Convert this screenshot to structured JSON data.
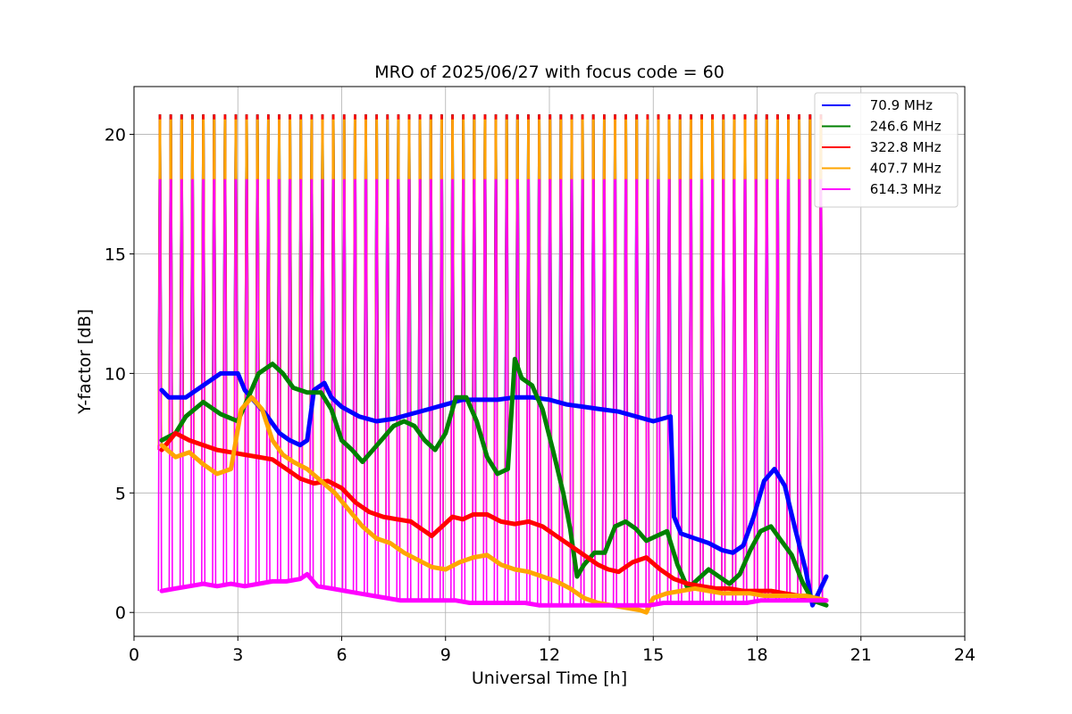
{
  "chart_data": {
    "type": "line",
    "title": "MRO of 2025/06/27 with focus code = 60",
    "xlabel": "Universal Time [h]",
    "ylabel": "Y-factor [dB]",
    "xlim": [
      0,
      24
    ],
    "ylim": [
      -1,
      22
    ],
    "x_ticks": [
      0,
      3,
      6,
      9,
      12,
      15,
      18,
      21,
      24
    ],
    "y_ticks": [
      0,
      5,
      10,
      15,
      20
    ],
    "grid": true,
    "legend_position": "top-right",
    "data_range_hours": [
      0.75,
      20.0
    ],
    "calibration_spikes": {
      "count": 62,
      "first_hour": 0.75,
      "interval_hours": 0.313,
      "peak_db": {
        "70.9 MHz": 20.8,
        "246.6 MHz": 20.8,
        "322.8 MHz": 20.8,
        "407.7 MHz": 20.6,
        "614.3 MHz": 18.1
      }
    },
    "series": [
      {
        "name": " 70.9 MHz",
        "color": "#0000ff",
        "end_hour": 20.0,
        "points": [
          [
            0.8,
            9.3
          ],
          [
            1.0,
            9.0
          ],
          [
            1.5,
            9.0
          ],
          [
            2.0,
            9.5
          ],
          [
            2.5,
            10.0
          ],
          [
            3.0,
            10.0
          ],
          [
            3.2,
            9.3
          ],
          [
            3.5,
            8.8
          ],
          [
            3.8,
            8.3
          ],
          [
            4.2,
            7.5
          ],
          [
            4.5,
            7.2
          ],
          [
            4.8,
            7.0
          ],
          [
            5.0,
            7.2
          ],
          [
            5.2,
            9.3
          ],
          [
            5.5,
            9.6
          ],
          [
            5.7,
            9.0
          ],
          [
            6.0,
            8.6
          ],
          [
            6.5,
            8.2
          ],
          [
            7.0,
            8.0
          ],
          [
            7.5,
            8.1
          ],
          [
            8.0,
            8.3
          ],
          [
            8.5,
            8.5
          ],
          [
            9.0,
            8.7
          ],
          [
            9.5,
            8.9
          ],
          [
            10.0,
            8.9
          ],
          [
            10.5,
            8.9
          ],
          [
            11.0,
            9.0
          ],
          [
            11.5,
            9.0
          ],
          [
            12.0,
            8.9
          ],
          [
            12.5,
            8.7
          ],
          [
            13.0,
            8.6
          ],
          [
            13.5,
            8.5
          ],
          [
            14.0,
            8.4
          ],
          [
            14.5,
            8.2
          ],
          [
            15.0,
            8.0
          ],
          [
            15.5,
            8.2
          ],
          [
            15.6,
            4.0
          ],
          [
            15.8,
            3.3
          ],
          [
            16.2,
            3.1
          ],
          [
            16.6,
            2.9
          ],
          [
            17.0,
            2.6
          ],
          [
            17.3,
            2.5
          ],
          [
            17.6,
            2.8
          ],
          [
            17.9,
            4.0
          ],
          [
            18.2,
            5.5
          ],
          [
            18.5,
            6.0
          ],
          [
            18.8,
            5.3
          ],
          [
            19.1,
            3.5
          ],
          [
            19.4,
            1.8
          ],
          [
            19.6,
            0.3
          ],
          [
            19.8,
            0.9
          ],
          [
            20.0,
            1.5
          ]
        ]
      },
      {
        "name": " 246.6 MHz",
        "color": "#008000",
        "end_hour": 20.0,
        "points": [
          [
            0.8,
            7.2
          ],
          [
            1.2,
            7.5
          ],
          [
            1.5,
            8.2
          ],
          [
            2.0,
            8.8
          ],
          [
            2.5,
            8.3
          ],
          [
            3.0,
            8.0
          ],
          [
            3.3,
            9.0
          ],
          [
            3.6,
            10.0
          ],
          [
            4.0,
            10.4
          ],
          [
            4.3,
            10.0
          ],
          [
            4.6,
            9.4
          ],
          [
            5.0,
            9.2
          ],
          [
            5.4,
            9.2
          ],
          [
            5.7,
            8.5
          ],
          [
            6.0,
            7.2
          ],
          [
            6.3,
            6.8
          ],
          [
            6.6,
            6.3
          ],
          [
            6.9,
            6.8
          ],
          [
            7.2,
            7.3
          ],
          [
            7.5,
            7.8
          ],
          [
            7.8,
            8.0
          ],
          [
            8.1,
            7.8
          ],
          [
            8.4,
            7.2
          ],
          [
            8.7,
            6.8
          ],
          [
            9.0,
            7.5
          ],
          [
            9.3,
            9.0
          ],
          [
            9.6,
            9.0
          ],
          [
            9.9,
            8.0
          ],
          [
            10.2,
            6.5
          ],
          [
            10.5,
            5.8
          ],
          [
            10.8,
            6.0
          ],
          [
            11.0,
            10.6
          ],
          [
            11.2,
            9.8
          ],
          [
            11.5,
            9.5
          ],
          [
            11.8,
            8.5
          ],
          [
            12.1,
            6.8
          ],
          [
            12.4,
            5.0
          ],
          [
            12.6,
            3.5
          ],
          [
            12.8,
            1.5
          ],
          [
            13.0,
            2.0
          ],
          [
            13.3,
            2.5
          ],
          [
            13.6,
            2.5
          ],
          [
            13.9,
            3.6
          ],
          [
            14.2,
            3.8
          ],
          [
            14.5,
            3.5
          ],
          [
            14.8,
            3.0
          ],
          [
            15.1,
            3.2
          ],
          [
            15.4,
            3.4
          ],
          [
            15.7,
            2.0
          ],
          [
            16.0,
            1.0
          ],
          [
            16.3,
            1.4
          ],
          [
            16.6,
            1.8
          ],
          [
            16.9,
            1.5
          ],
          [
            17.2,
            1.2
          ],
          [
            17.5,
            1.6
          ],
          [
            17.8,
            2.6
          ],
          [
            18.1,
            3.4
          ],
          [
            18.4,
            3.6
          ],
          [
            18.7,
            3.0
          ],
          [
            19.0,
            2.4
          ],
          [
            19.3,
            1.3
          ],
          [
            19.6,
            0.5
          ],
          [
            20.0,
            0.3
          ]
        ]
      },
      {
        "name": " 322.8 MHz",
        "color": "#ff0000",
        "end_hour": 20.0,
        "points": [
          [
            0.8,
            6.8
          ],
          [
            1.2,
            7.5
          ],
          [
            1.6,
            7.2
          ],
          [
            2.0,
            7.0
          ],
          [
            2.4,
            6.8
          ],
          [
            2.8,
            6.7
          ],
          [
            3.2,
            6.6
          ],
          [
            3.6,
            6.5
          ],
          [
            4.0,
            6.4
          ],
          [
            4.4,
            6.0
          ],
          [
            4.8,
            5.6
          ],
          [
            5.2,
            5.4
          ],
          [
            5.6,
            5.5
          ],
          [
            6.0,
            5.2
          ],
          [
            6.4,
            4.6
          ],
          [
            6.8,
            4.2
          ],
          [
            7.2,
            4.0
          ],
          [
            7.6,
            3.9
          ],
          [
            8.0,
            3.8
          ],
          [
            8.3,
            3.5
          ],
          [
            8.6,
            3.2
          ],
          [
            8.9,
            3.6
          ],
          [
            9.2,
            4.0
          ],
          [
            9.5,
            3.9
          ],
          [
            9.8,
            4.1
          ],
          [
            10.2,
            4.1
          ],
          [
            10.6,
            3.8
          ],
          [
            11.0,
            3.7
          ],
          [
            11.4,
            3.8
          ],
          [
            11.8,
            3.6
          ],
          [
            12.2,
            3.2
          ],
          [
            12.6,
            2.8
          ],
          [
            13.0,
            2.4
          ],
          [
            13.4,
            2.0
          ],
          [
            13.7,
            1.8
          ],
          [
            14.0,
            1.7
          ],
          [
            14.4,
            2.1
          ],
          [
            14.8,
            2.3
          ],
          [
            15.2,
            1.8
          ],
          [
            15.6,
            1.4
          ],
          [
            16.0,
            1.2
          ],
          [
            16.4,
            1.1
          ],
          [
            16.8,
            1.0
          ],
          [
            17.2,
            1.0
          ],
          [
            17.6,
            0.9
          ],
          [
            18.0,
            0.9
          ],
          [
            18.4,
            0.9
          ],
          [
            18.8,
            0.8
          ],
          [
            19.2,
            0.7
          ],
          [
            19.6,
            0.6
          ],
          [
            20.0,
            0.5
          ]
        ]
      },
      {
        "name": " 407.7 MHz",
        "color": "#ffa500",
        "end_hour": 20.0,
        "points": [
          [
            0.8,
            7.0
          ],
          [
            1.2,
            6.5
          ],
          [
            1.6,
            6.7
          ],
          [
            2.0,
            6.2
          ],
          [
            2.4,
            5.8
          ],
          [
            2.8,
            6.0
          ],
          [
            3.1,
            8.5
          ],
          [
            3.4,
            9.0
          ],
          [
            3.7,
            8.5
          ],
          [
            4.0,
            7.2
          ],
          [
            4.3,
            6.6
          ],
          [
            4.6,
            6.3
          ],
          [
            5.0,
            6.0
          ],
          [
            5.4,
            5.5
          ],
          [
            5.8,
            5.0
          ],
          [
            6.2,
            4.3
          ],
          [
            6.6,
            3.6
          ],
          [
            7.0,
            3.1
          ],
          [
            7.4,
            2.9
          ],
          [
            7.8,
            2.5
          ],
          [
            8.2,
            2.2
          ],
          [
            8.6,
            1.9
          ],
          [
            9.0,
            1.8
          ],
          [
            9.4,
            2.1
          ],
          [
            9.8,
            2.3
          ],
          [
            10.2,
            2.4
          ],
          [
            10.6,
            2.0
          ],
          [
            11.0,
            1.8
          ],
          [
            11.4,
            1.7
          ],
          [
            11.8,
            1.5
          ],
          [
            12.2,
            1.3
          ],
          [
            12.6,
            1.0
          ],
          [
            13.0,
            0.6
          ],
          [
            13.4,
            0.4
          ],
          [
            13.8,
            0.3
          ],
          [
            14.2,
            0.2
          ],
          [
            14.6,
            0.1
          ],
          [
            14.8,
            0.0
          ],
          [
            15.0,
            0.6
          ],
          [
            15.4,
            0.8
          ],
          [
            15.8,
            0.9
          ],
          [
            16.2,
            1.0
          ],
          [
            16.6,
            0.9
          ],
          [
            17.0,
            0.8
          ],
          [
            17.4,
            0.8
          ],
          [
            17.8,
            0.8
          ],
          [
            18.2,
            0.7
          ],
          [
            18.6,
            0.7
          ],
          [
            19.0,
            0.7
          ],
          [
            19.4,
            0.7
          ],
          [
            19.7,
            0.6
          ],
          [
            20.0,
            0.5
          ]
        ]
      },
      {
        "name": " 614.3 MHz",
        "color": "#ff00ff",
        "end_hour": 20.0,
        "points": [
          [
            0.8,
            0.9
          ],
          [
            1.2,
            1.0
          ],
          [
            1.6,
            1.1
          ],
          [
            2.0,
            1.2
          ],
          [
            2.4,
            1.1
          ],
          [
            2.8,
            1.2
          ],
          [
            3.2,
            1.1
          ],
          [
            3.6,
            1.2
          ],
          [
            4.0,
            1.3
          ],
          [
            4.4,
            1.3
          ],
          [
            4.8,
            1.4
          ],
          [
            5.0,
            1.6
          ],
          [
            5.3,
            1.1
          ],
          [
            5.7,
            1.0
          ],
          [
            6.1,
            0.9
          ],
          [
            6.5,
            0.8
          ],
          [
            6.9,
            0.7
          ],
          [
            7.3,
            0.6
          ],
          [
            7.7,
            0.5
          ],
          [
            8.1,
            0.5
          ],
          [
            8.5,
            0.5
          ],
          [
            8.9,
            0.5
          ],
          [
            9.3,
            0.5
          ],
          [
            9.7,
            0.4
          ],
          [
            10.1,
            0.4
          ],
          [
            10.5,
            0.4
          ],
          [
            10.9,
            0.4
          ],
          [
            11.3,
            0.4
          ],
          [
            11.7,
            0.3
          ],
          [
            12.1,
            0.3
          ],
          [
            12.5,
            0.3
          ],
          [
            12.9,
            0.3
          ],
          [
            13.3,
            0.3
          ],
          [
            13.7,
            0.3
          ],
          [
            14.1,
            0.3
          ],
          [
            14.5,
            0.3
          ],
          [
            14.9,
            0.3
          ],
          [
            15.3,
            0.4
          ],
          [
            15.7,
            0.4
          ],
          [
            16.1,
            0.4
          ],
          [
            16.5,
            0.4
          ],
          [
            16.9,
            0.4
          ],
          [
            17.3,
            0.4
          ],
          [
            17.7,
            0.4
          ],
          [
            18.1,
            0.5
          ],
          [
            18.5,
            0.5
          ],
          [
            18.9,
            0.5
          ],
          [
            19.3,
            0.5
          ],
          [
            19.7,
            0.5
          ],
          [
            20.0,
            0.5
          ]
        ]
      }
    ]
  }
}
